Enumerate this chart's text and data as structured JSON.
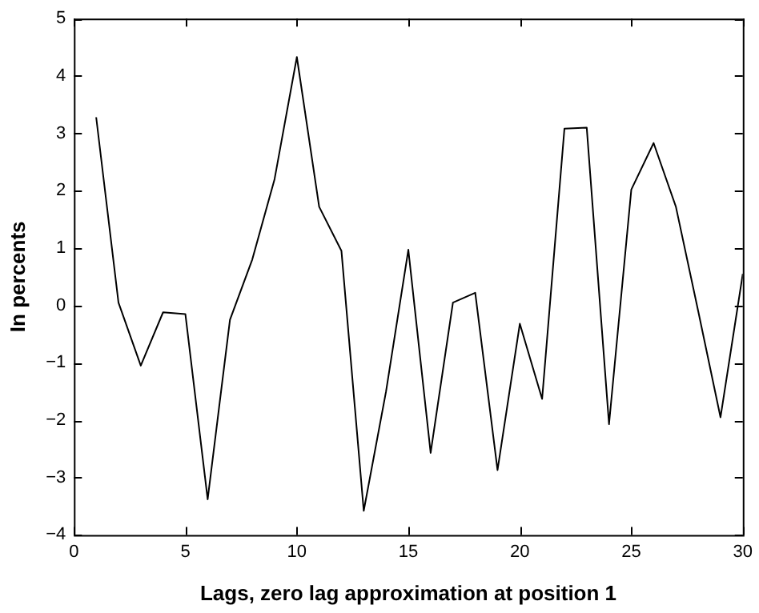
{
  "chart_data": {
    "type": "line",
    "xlabel": "Lags, zero lag approximation at position 1",
    "ylabel": "In percents",
    "x": [
      1,
      2,
      3,
      4,
      5,
      6,
      7,
      8,
      9,
      10,
      11,
      12,
      13,
      14,
      15,
      16,
      17,
      18,
      19,
      20,
      21,
      22,
      23,
      24,
      25,
      26,
      27,
      28,
      29,
      30
    ],
    "series": [
      {
        "color": "#000000",
        "values": [
          3.28,
          0.05,
          -1.05,
          -0.12,
          -0.15,
          -3.38,
          -0.25,
          0.8,
          2.2,
          4.33,
          1.72,
          0.95,
          -3.58,
          -1.5,
          0.97,
          -2.57,
          0.05,
          0.22,
          -2.87,
          -0.32,
          -1.63,
          3.08,
          3.1,
          -2.07,
          2.02,
          2.83,
          1.72,
          -0.1,
          -1.95,
          0.55
        ]
      }
    ],
    "xlim": [
      0,
      30
    ],
    "xticks": [
      0,
      5,
      10,
      15,
      20,
      25,
      30
    ],
    "ylim": [
      -4,
      5
    ],
    "yticks": [
      -4,
      -3,
      -2,
      -1,
      0,
      1,
      2,
      3,
      4,
      5
    ],
    "grid": false,
    "legend": false,
    "marker": "none",
    "line_style": "solid"
  }
}
